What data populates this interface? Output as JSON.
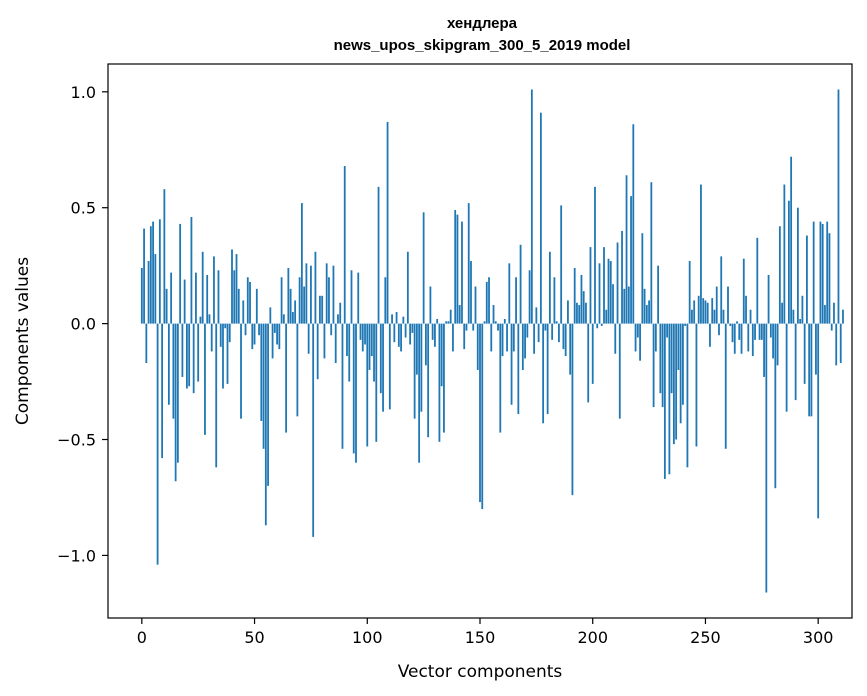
{
  "chart_data": {
    "type": "bar",
    "title": "хендлера",
    "subtitle": "news_upos_skipgram_300_5_2019 model",
    "xlabel": "Vector components",
    "ylabel": "Components values",
    "xlim": [
      -15,
      315
    ],
    "ylim": [
      -1.27,
      1.12
    ],
    "xticks": [
      {
        "value": 0,
        "label": "0"
      },
      {
        "value": 50,
        "label": "50"
      },
      {
        "value": 100,
        "label": "100"
      },
      {
        "value": 150,
        "label": "150"
      },
      {
        "value": 200,
        "label": "200"
      },
      {
        "value": 250,
        "label": "250"
      },
      {
        "value": 300,
        "label": "300"
      }
    ],
    "yticks": [
      {
        "value": -1.0,
        "label": "−1.0"
      },
      {
        "value": -0.5,
        "label": "−0.5"
      },
      {
        "value": 0.0,
        "label": "0.0"
      },
      {
        "value": 0.5,
        "label": "0.5"
      },
      {
        "value": 1.0,
        "label": "1.0"
      }
    ],
    "bar_color": "#1f77b4",
    "values": [
      0.24,
      0.41,
      -0.17,
      0.27,
      0.42,
      0.44,
      0.3,
      -1.04,
      0.45,
      -0.58,
      0.58,
      0.15,
      -0.35,
      0.22,
      -0.41,
      -0.68,
      -0.6,
      0.43,
      -0.23,
      0.19,
      -0.28,
      -0.27,
      0.46,
      -0.3,
      0.22,
      -0.25,
      0.03,
      0.31,
      -0.48,
      0.21,
      0.04,
      -0.12,
      0.29,
      -0.62,
      0.23,
      -0.1,
      -0.28,
      -0.02,
      -0.26,
      -0.08,
      0.32,
      0.23,
      0.3,
      0.15,
      -0.41,
      0.1,
      -0.05,
      0.2,
      0.18,
      -0.11,
      -0.09,
      0.15,
      -0.05,
      -0.42,
      -0.54,
      -0.87,
      -0.7,
      0.07,
      -0.15,
      -0.04,
      -0.09,
      -0.11,
      0.2,
      0.04,
      -0.47,
      0.24,
      0.15,
      0.05,
      0.1,
      -0.4,
      0.2,
      0.52,
      0.16,
      0.26,
      -0.13,
      0.25,
      -0.92,
      0.31,
      -0.24,
      0.12,
      0.12,
      -0.15,
      0.26,
      0.2,
      -0.05,
      0.25,
      -0.17,
      0.04,
      0.09,
      -0.54,
      0.68,
      -0.14,
      -0.25,
      0.23,
      -0.56,
      -0.6,
      0.22,
      -0.07,
      -0.12,
      -0.09,
      -0.53,
      -0.2,
      -0.14,
      -0.25,
      -0.51,
      0.59,
      -0.3,
      -0.38,
      0.2,
      0.87,
      -0.37,
      0.04,
      -0.08,
      0.05,
      -0.1,
      -0.12,
      0.03,
      -0.06,
      0.31,
      -0.09,
      -0.04,
      -0.41,
      -0.22,
      -0.6,
      -0.38,
      0.48,
      -0.18,
      -0.49,
      0.16,
      -0.07,
      -0.1,
      0.02,
      -0.51,
      -0.27,
      -0.47,
      0.01,
      0.01,
      0.06,
      -0.12,
      0.49,
      0.47,
      0.08,
      0.44,
      -0.11,
      -0.03,
      0.52,
      0.27,
      -0.03,
      0.16,
      -0.2,
      -0.77,
      -0.8,
      0.01,
      0.18,
      0.2,
      -0.12,
      0.08,
      0.01,
      -0.03,
      -0.47,
      -0.14,
      0.02,
      -0.12,
      0.26,
      -0.35,
      -0.12,
      0.2,
      -0.39,
      0.34,
      -0.2,
      -0.15,
      -0.06,
      0.23,
      1.01,
      -0.13,
      0.07,
      -0.08,
      0.91,
      -0.43,
      -0.03,
      -0.39,
      0.31,
      -0.07,
      0.2,
      0.01,
      -0.08,
      0.51,
      -0.11,
      -0.14,
      0.1,
      -0.22,
      -0.74,
      0.24,
      0.09,
      0.08,
      0.21,
      0.14,
      0.09,
      -0.34,
      0.33,
      -0.26,
      0.59,
      -0.02,
      0.26,
      -0.01,
      0.33,
      0.06,
      0.28,
      0.27,
      0.17,
      -0.13,
      0.35,
      -0.41,
      0.4,
      0.15,
      0.64,
      0.16,
      0.55,
      0.86,
      -0.12,
      -0.06,
      -0.16,
      0.39,
      0.15,
      0.08,
      0.1,
      0.61,
      -0.36,
      -0.12,
      0.25,
      -0.3,
      -0.36,
      -0.67,
      -0.06,
      -0.65,
      -0.3,
      -0.52,
      -0.5,
      -0.2,
      -0.43,
      -0.35,
      -0.01,
      -0.62,
      0.27,
      0.06,
      0.1,
      -0.53,
      0.12,
      0.6,
      0.11,
      0.1,
      0.09,
      -0.1,
      0.11,
      0.06,
      0.16,
      -0.05,
      0.29,
      0.06,
      -0.54,
      0.16,
      -0.01,
      -0.08,
      -0.13,
      0.01,
      -0.07,
      -0.13,
      0.28,
      0.12,
      -0.12,
      0.06,
      -0.14,
      -0.07,
      0.37,
      -0.07,
      -0.07,
      -0.23,
      -1.16,
      0.21,
      -0.06,
      -0.15,
      -0.71,
      -0.18,
      0.42,
      0.09,
      0.6,
      -0.38,
      0.53,
      0.72,
      0.06,
      -0.33,
      0.5,
      0.02,
      0.12,
      -0.26,
      0.38,
      -0.4,
      -0.4,
      0.44,
      -0.22,
      -0.84,
      0.44,
      0.43,
      0.08,
      0.44,
      0.39,
      -0.03,
      0.09,
      -0.18,
      1.01,
      -0.17,
      0.06
    ]
  }
}
